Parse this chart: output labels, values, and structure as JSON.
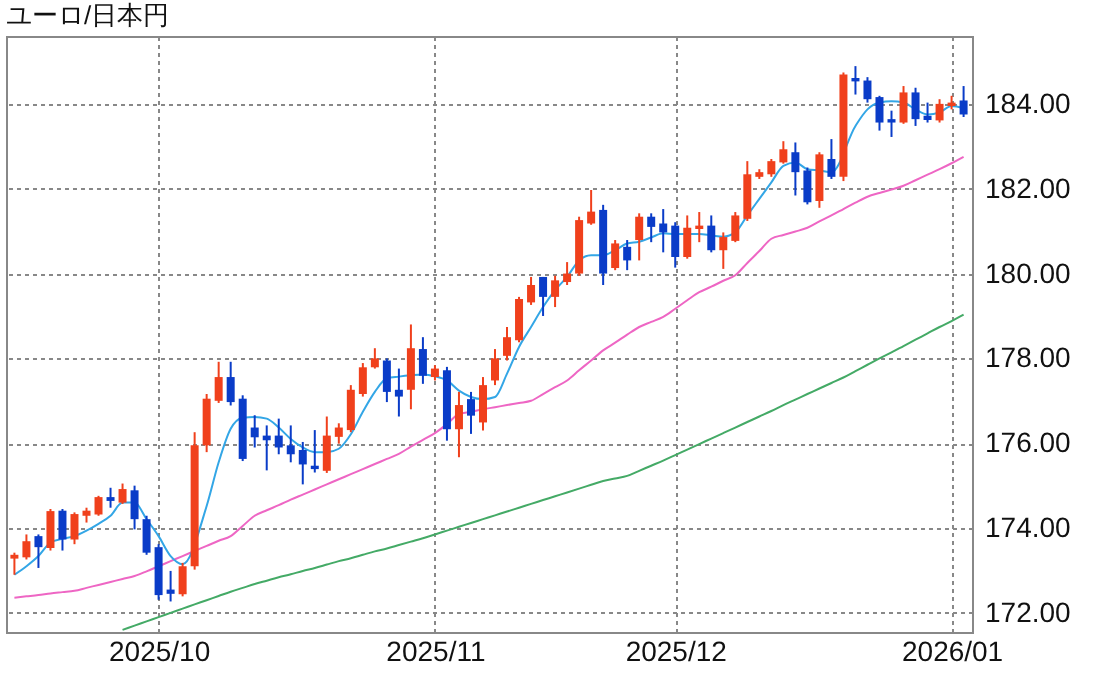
{
  "chart_data": {
    "type": "candlestick",
    "title": "ユーロ/日本円",
    "categories": [
      null,
      null,
      null,
      null,
      null,
      null,
      null,
      null,
      null,
      null,
      null,
      null,
      "2025/10",
      null,
      null,
      null,
      null,
      null,
      null,
      null,
      null,
      null,
      null,
      null,
      null,
      null,
      null,
      null,
      null,
      null,
      null,
      null,
      null,
      null,
      null,
      "2025/11",
      null,
      null,
      null,
      null,
      null,
      null,
      null,
      null,
      null,
      null,
      null,
      null,
      null,
      null,
      null,
      null,
      null,
      null,
      null,
      "2025/12",
      null,
      null,
      null,
      null,
      null,
      null,
      null,
      null,
      null,
      null,
      null,
      null,
      null,
      null,
      null,
      null,
      null,
      null,
      null,
      null,
      null,
      null,
      "2026/01",
      null
    ],
    "ohlc": [
      [
        173.28,
        173.42,
        172.9,
        173.37
      ],
      [
        173.31,
        173.85,
        173.26,
        173.69
      ],
      [
        173.81,
        173.85,
        173.06,
        173.55
      ],
      [
        173.53,
        174.45,
        173.47,
        174.4
      ],
      [
        174.41,
        174.45,
        173.47,
        173.73
      ],
      [
        173.73,
        174.37,
        173.62,
        174.33
      ],
      [
        174.29,
        174.48,
        174.13,
        174.41
      ],
      [
        174.32,
        174.76,
        174.29,
        174.73
      ],
      [
        174.73,
        174.95,
        174.48,
        174.64
      ],
      [
        174.6,
        175.05,
        174.57,
        174.92
      ],
      [
        174.89,
        175.0,
        173.97,
        174.21
      ],
      [
        174.21,
        174.29,
        173.37,
        173.42
      ],
      [
        173.55,
        173.62,
        172.31,
        172.42
      ],
      [
        172.55,
        172.99,
        172.27,
        172.45
      ],
      [
        172.44,
        173.18,
        172.39,
        173.1
      ],
      [
        173.1,
        176.26,
        173.02,
        175.95
      ],
      [
        175.95,
        177.16,
        175.79,
        177.05
      ],
      [
        177.0,
        177.92,
        176.95,
        177.56
      ],
      [
        177.56,
        177.92,
        176.89,
        176.97
      ],
      [
        177.05,
        177.13,
        175.58,
        175.63
      ],
      [
        176.37,
        176.66,
        175.9,
        176.14
      ],
      [
        176.18,
        176.42,
        175.36,
        176.07
      ],
      [
        176.18,
        176.58,
        175.74,
        175.9
      ],
      [
        175.95,
        176.42,
        175.55,
        175.74
      ],
      [
        175.84,
        176.03,
        175.03,
        175.5
      ],
      [
        175.47,
        176.31,
        175.31,
        175.39
      ],
      [
        175.35,
        176.63,
        175.3,
        176.18
      ],
      [
        176.15,
        176.47,
        175.99,
        176.37
      ],
      [
        176.31,
        177.37,
        176.26,
        177.26
      ],
      [
        177.16,
        177.89,
        177.1,
        177.79
      ],
      [
        177.79,
        178.24,
        177.76,
        178.0
      ],
      [
        177.95,
        178.0,
        176.97,
        177.21
      ],
      [
        177.26,
        177.76,
        176.63,
        177.1
      ],
      [
        177.26,
        178.8,
        176.8,
        178.24
      ],
      [
        178.22,
        178.5,
        177.4,
        177.59
      ],
      [
        177.56,
        177.84,
        177.48,
        177.76
      ],
      [
        177.72,
        177.8,
        176.06,
        176.33
      ],
      [
        176.33,
        177.21,
        175.67,
        176.9
      ],
      [
        177.04,
        177.21,
        176.22,
        176.65
      ],
      [
        176.49,
        177.56,
        176.3,
        177.37
      ],
      [
        177.48,
        178.22,
        177.37,
        178.0
      ],
      [
        178.06,
        178.74,
        177.95,
        178.5
      ],
      [
        178.43,
        179.45,
        178.38,
        179.4
      ],
      [
        179.32,
        179.92,
        179.26,
        179.73
      ],
      [
        179.92,
        179.92,
        179.0,
        179.45
      ],
      [
        179.45,
        179.95,
        179.21,
        179.84
      ],
      [
        179.8,
        180.27,
        179.73,
        180.0
      ],
      [
        180.0,
        181.34,
        179.95,
        181.26
      ],
      [
        181.18,
        181.97,
        181.15,
        181.46
      ],
      [
        181.5,
        181.62,
        179.73,
        180.0
      ],
      [
        180.13,
        180.79,
        180.08,
        180.71
      ],
      [
        180.63,
        180.79,
        180.08,
        180.31
      ],
      [
        180.79,
        181.42,
        180.31,
        181.34
      ],
      [
        181.34,
        181.42,
        180.74,
        181.1
      ],
      [
        181.18,
        181.52,
        180.5,
        180.97
      ],
      [
        181.13,
        181.21,
        180.14,
        180.39
      ],
      [
        180.39,
        181.37,
        180.35,
        181.08
      ],
      [
        181.05,
        181.45,
        180.74,
        181.13
      ],
      [
        181.13,
        181.37,
        180.5,
        180.55
      ],
      [
        180.55,
        180.97,
        180.11,
        180.86
      ],
      [
        180.77,
        181.45,
        180.74,
        181.37
      ],
      [
        181.29,
        182.65,
        181.24,
        182.34
      ],
      [
        182.28,
        182.46,
        182.23,
        182.39
      ],
      [
        182.34,
        182.7,
        182.28,
        182.65
      ],
      [
        182.62,
        183.12,
        182.59,
        182.93
      ],
      [
        182.86,
        183.09,
        181.84,
        182.39
      ],
      [
        182.43,
        182.5,
        181.63,
        181.68
      ],
      [
        181.71,
        182.86,
        181.55,
        182.81
      ],
      [
        182.7,
        183.17,
        182.23,
        182.28
      ],
      [
        182.28,
        184.74,
        182.18,
        184.69
      ],
      [
        184.61,
        184.89,
        184.22,
        184.53
      ],
      [
        184.55,
        184.63,
        184.03,
        184.11
      ],
      [
        184.16,
        184.19,
        183.37,
        183.56
      ],
      [
        183.64,
        183.84,
        183.22,
        183.56
      ],
      [
        183.56,
        184.42,
        183.53,
        184.27
      ],
      [
        184.27,
        184.38,
        183.48,
        183.64
      ],
      [
        183.72,
        184.03,
        183.56,
        183.62
      ],
      [
        183.61,
        184.11,
        183.56,
        184.0
      ],
      [
        183.95,
        184.19,
        183.87,
        184.03
      ],
      [
        184.08,
        184.42,
        183.69,
        183.75
      ]
    ],
    "colors": [
      "#f0401c",
      "#f0401c",
      "#0a3cc8",
      "#f0401c",
      "#0a3cc8",
      "#f0401c",
      "#f0401c",
      "#f0401c",
      "#0a3cc8",
      "#f0401c",
      "#0a3cc8",
      "#0a3cc8",
      "#0a3cc8",
      "#0a3cc8",
      "#f0401c",
      "#f0401c",
      "#f0401c",
      "#f0401c",
      "#0a3cc8",
      "#0a3cc8",
      "#0a3cc8",
      "#0a3cc8",
      "#0a3cc8",
      "#0a3cc8",
      "#0a3cc8",
      "#0a3cc8",
      "#f0401c",
      "#f0401c",
      "#f0401c",
      "#f0401c",
      "#f0401c",
      "#0a3cc8",
      "#0a3cc8",
      "#f0401c",
      "#0a3cc8",
      "#f0401c",
      "#0a3cc8",
      "#f0401c",
      "#0a3cc8",
      "#f0401c",
      "#f0401c",
      "#f0401c",
      "#f0401c",
      "#f0401c",
      "#0a3cc8",
      "#f0401c",
      "#f0401c",
      "#f0401c",
      "#f0401c",
      "#0a3cc8",
      "#f0401c",
      "#0a3cc8",
      "#f0401c",
      "#0a3cc8",
      "#0a3cc8",
      "#0a3cc8",
      "#f0401c",
      "#f0401c",
      "#0a3cc8",
      "#f0401c",
      "#f0401c",
      "#f0401c",
      "#f0401c",
      "#f0401c",
      "#f0401c",
      "#0a3cc8",
      "#0a3cc8",
      "#f0401c",
      "#0a3cc8",
      "#f0401c",
      "#0a3cc8",
      "#0a3cc8",
      "#0a3cc8",
      "#0a3cc8",
      "#f0401c",
      "#0a3cc8",
      "#0a3cc8",
      "#f0401c",
      "#f0401c",
      "#0a3cc8"
    ],
    "series": [
      {
        "type": "line",
        "color": "#ee66c4",
        "values": [
          172.36,
          172.39,
          172.42,
          172.46,
          172.49,
          172.52,
          172.59,
          172.66,
          172.73,
          172.8,
          172.87,
          172.98,
          173.1,
          173.22,
          173.34,
          173.46,
          173.58,
          173.7,
          173.81,
          174.05,
          174.29,
          174.42,
          174.54,
          174.67,
          174.79,
          174.91,
          175.03,
          175.15,
          175.27,
          175.39,
          175.51,
          175.63,
          175.75,
          175.92,
          176.08,
          176.24,
          176.45,
          176.69,
          176.74,
          176.8,
          176.85,
          176.9,
          176.95,
          177.0,
          177.16,
          177.32,
          177.48,
          177.72,
          177.95,
          178.19,
          178.37,
          178.56,
          178.74,
          178.86,
          178.98,
          179.17,
          179.37,
          179.56,
          179.69,
          179.83,
          179.96,
          180.25,
          180.53,
          180.82,
          180.91,
          180.99,
          181.08,
          181.23,
          181.37,
          181.52,
          181.67,
          181.81,
          181.9,
          181.98,
          182.07,
          182.2,
          182.33,
          182.46,
          182.6,
          182.75
        ]
      },
      {
        "type": "line",
        "color": "#44aa66",
        "values": [
          null,
          null,
          null,
          null,
          null,
          null,
          null,
          null,
          null,
          171.6,
          171.7,
          171.8,
          171.9,
          172.0,
          172.1,
          172.2,
          172.3,
          172.4,
          172.5,
          172.59,
          172.68,
          172.76,
          172.84,
          172.91,
          172.99,
          173.06,
          173.14,
          173.22,
          173.29,
          173.37,
          173.45,
          173.52,
          173.6,
          173.68,
          173.76,
          173.85,
          173.94,
          174.03,
          174.12,
          174.21,
          174.3,
          174.39,
          174.48,
          174.57,
          174.66,
          174.75,
          174.84,
          174.93,
          175.02,
          175.11,
          175.17,
          175.23,
          175.35,
          175.47,
          175.59,
          175.72,
          175.85,
          175.98,
          176.11,
          176.24,
          176.37,
          176.5,
          176.63,
          176.76,
          176.9,
          177.03,
          177.16,
          177.29,
          177.42,
          177.55,
          177.7,
          177.85,
          178.0,
          178.14,
          178.29,
          178.44,
          178.59,
          178.74,
          178.88,
          179.03
        ]
      },
      {
        "type": "line",
        "color": "#33a6e6",
        "values": [
          172.9,
          173.1,
          173.34,
          173.66,
          173.75,
          173.81,
          173.94,
          174.1,
          174.29,
          174.6,
          174.6,
          174.21,
          173.81,
          173.34,
          173.15,
          null,
          174.52,
          175.55,
          176.34,
          176.6,
          176.62,
          176.58,
          176.37,
          176.1,
          175.9,
          175.79,
          175.79,
          175.87,
          176.21,
          176.74,
          177.21,
          177.53,
          177.57,
          177.6,
          177.62,
          177.58,
          177.48,
          177.24,
          177.09,
          177.04,
          177.09,
          177.64,
          178.27,
          178.74,
          179.21,
          179.61,
          179.92,
          180.31,
          180.43,
          180.43,
          180.55,
          180.71,
          180.75,
          180.85,
          180.95,
          180.93,
          180.93,
          180.93,
          180.9,
          180.87,
          180.97,
          181.37,
          181.76,
          182.15,
          182.54,
          182.62,
          182.46,
          182.43,
          182.39,
          null,
          183.48,
          183.87,
          184.03,
          184.06,
          184.03,
          183.87,
          183.75,
          183.8,
          183.95,
          183.9
        ]
      }
    ],
    "ylim": [
      171.55,
      185.6
    ],
    "yticks": [
      {
        "value": 172,
        "label": "172.00"
      },
      {
        "value": 174,
        "label": "174.00"
      },
      {
        "value": 176,
        "label": "176.00"
      },
      {
        "value": 178,
        "label": "178.00"
      },
      {
        "value": 180,
        "label": "180.00"
      },
      {
        "value": 182,
        "label": "182.00"
      },
      {
        "value": 184,
        "label": "184.00"
      }
    ],
    "grid": true
  }
}
